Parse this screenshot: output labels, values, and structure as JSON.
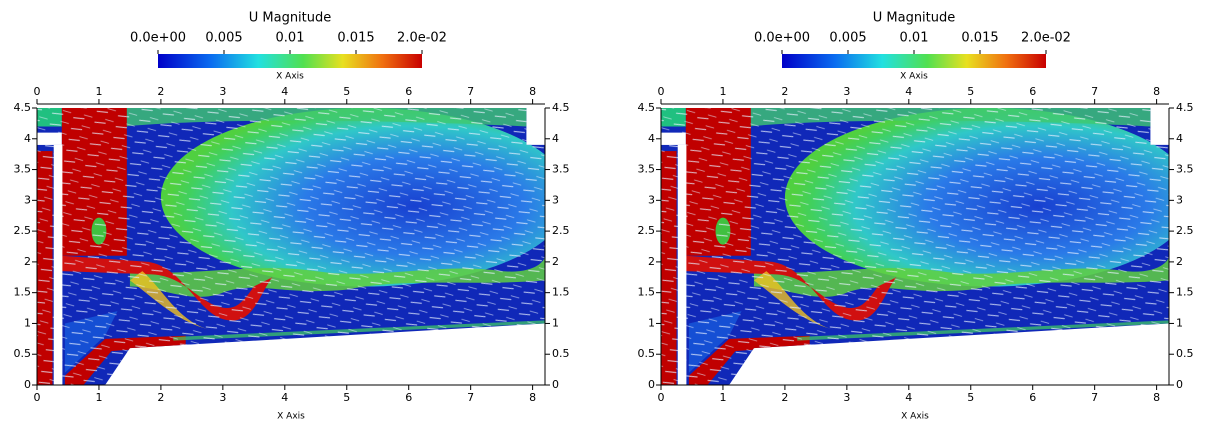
{
  "chart_data": [
    {
      "type": "field",
      "colorbar": {
        "title": "U Magnitude",
        "label": "X Axis",
        "clim": [
          0,
          0.02
        ],
        "ticks": [
          {
            "value": 0,
            "label": "0.0e+00"
          },
          0.005,
          0.01,
          0.015,
          {
            "value": 0.02,
            "label": "2.0e-02"
          }
        ]
      },
      "x_label": "X Axis",
      "xlim": [
        0,
        8.2
      ],
      "ylim": [
        0,
        4.5
      ],
      "xticks": [
        0,
        1,
        2,
        3,
        4,
        5,
        6,
        7,
        8
      ],
      "yticks": [
        0,
        0.5,
        1,
        1.5,
        2,
        2.5,
        3,
        3.5,
        4,
        4.5
      ]
    },
    {
      "type": "field",
      "colorbar": {
        "title": "U Magnitude",
        "label": "X Axis",
        "clim": [
          0,
          0.02
        ],
        "ticks": [
          {
            "value": 0,
            "label": "0.0e+00"
          },
          0.005,
          0.01,
          0.015,
          {
            "value": 0.02,
            "label": "2.0e-02"
          }
        ]
      },
      "x_label": "X Axis",
      "xlim": [
        0,
        8.2
      ],
      "ylim": [
        0,
        4.5
      ],
      "xticks": [
        0,
        1,
        2,
        3,
        4,
        5,
        6,
        7,
        8
      ],
      "yticks": [
        0,
        0.5,
        1,
        1.5,
        2,
        2.5,
        3,
        3.5,
        4,
        4.5
      ]
    }
  ]
}
